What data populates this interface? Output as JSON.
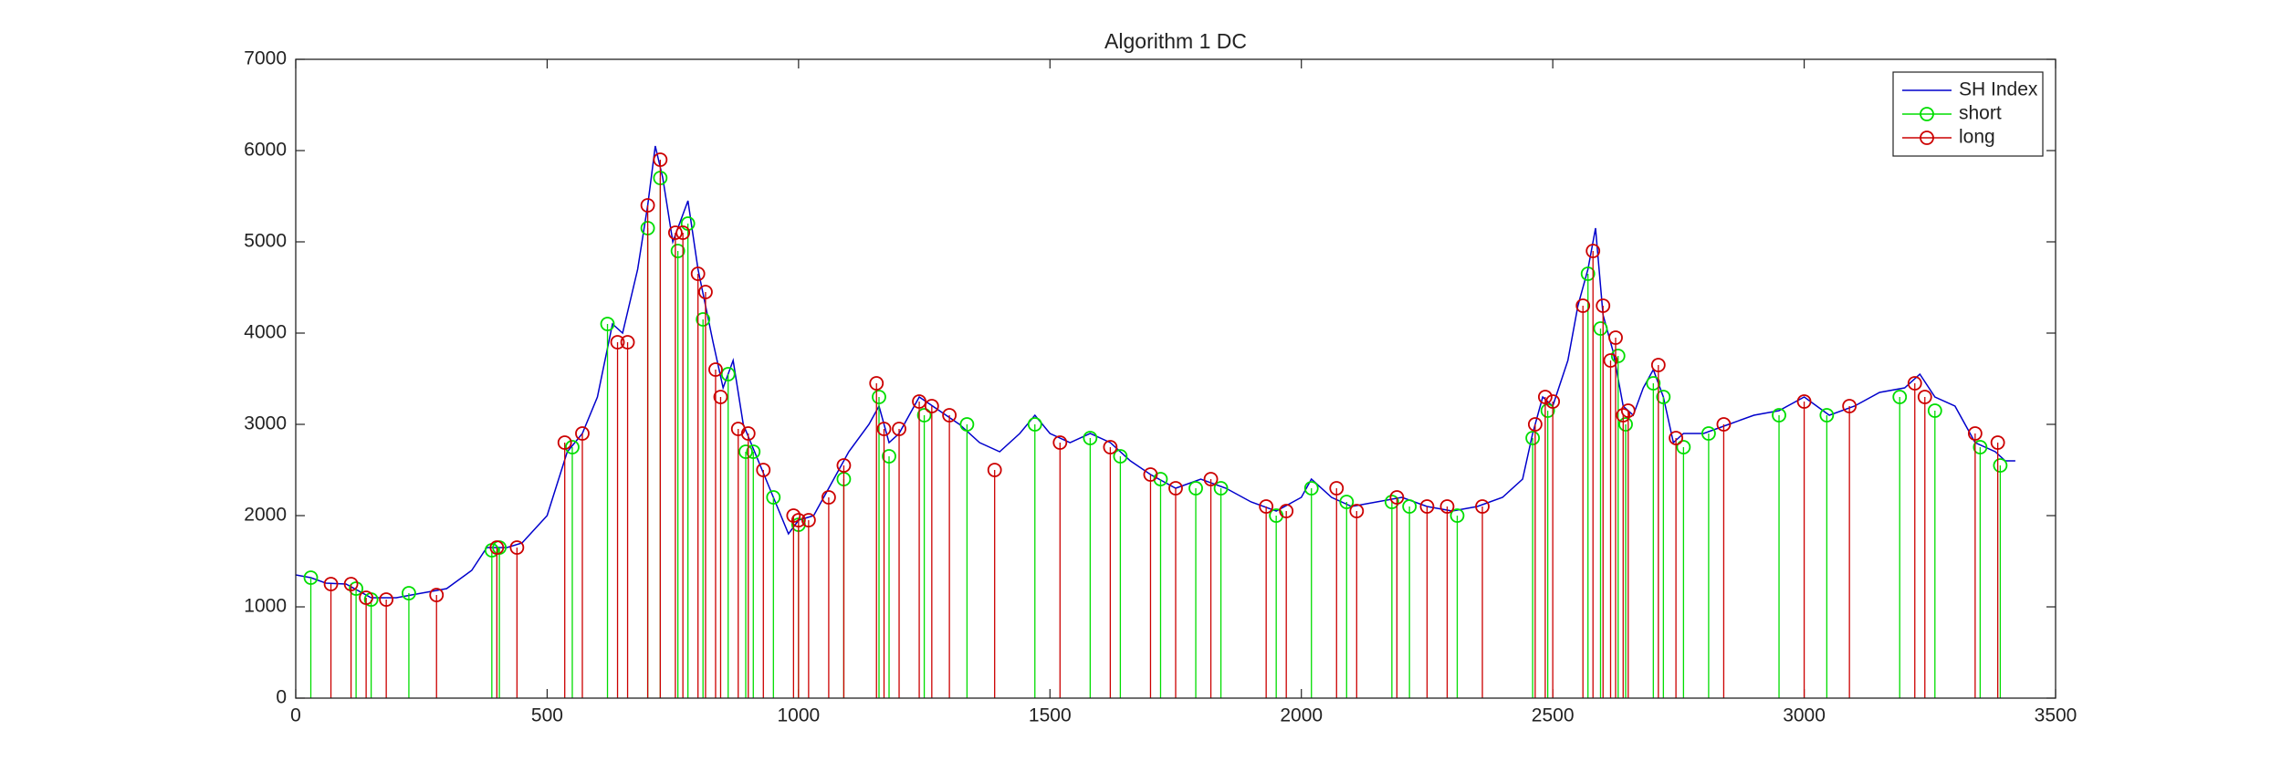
{
  "chart_data": {
    "type": "line",
    "title": "Algorithm 1 DC",
    "xlim": [
      0,
      3500
    ],
    "xticks": [
      0,
      500,
      1000,
      1500,
      2000,
      2500,
      3000,
      3500
    ],
    "ylim": [
      0,
      7000
    ],
    "yticks": [
      0,
      1000,
      2000,
      3000,
      4000,
      5000,
      6000,
      7000
    ],
    "legend": "upper right",
    "series": [
      {
        "name": "SH Index",
        "color": "#0000cc",
        "style": "line",
        "x": [
          0,
          30,
          60,
          100,
          150,
          200,
          250,
          300,
          350,
          380,
          420,
          450,
          500,
          540,
          570,
          600,
          630,
          650,
          680,
          700,
          715,
          730,
          750,
          780,
          800,
          830,
          850,
          870,
          890,
          920,
          950,
          980,
          1000,
          1030,
          1060,
          1100,
          1140,
          1160,
          1180,
          1200,
          1240,
          1280,
          1320,
          1360,
          1400,
          1440,
          1470,
          1500,
          1540,
          1580,
          1620,
          1660,
          1700,
          1750,
          1800,
          1850,
          1900,
          1950,
          2000,
          2020,
          2060,
          2100,
          2150,
          2200,
          2250,
          2300,
          2350,
          2400,
          2440,
          2460,
          2480,
          2500,
          2530,
          2550,
          2570,
          2585,
          2600,
          2620,
          2640,
          2660,
          2680,
          2700,
          2720,
          2740,
          2760,
          2800,
          2850,
          2900,
          2950,
          3000,
          3050,
          3100,
          3150,
          3200,
          3230,
          3260,
          3300,
          3340,
          3380,
          3400,
          3420
        ],
        "values": [
          1350,
          1320,
          1260,
          1250,
          1100,
          1100,
          1150,
          1200,
          1400,
          1650,
          1650,
          1700,
          2000,
          2700,
          2900,
          3300,
          4100,
          4000,
          4700,
          5400,
          6050,
          5700,
          5000,
          5450,
          4700,
          3900,
          3400,
          3700,
          3000,
          2600,
          2200,
          1800,
          1950,
          2000,
          2300,
          2700,
          3000,
          3200,
          2800,
          2900,
          3300,
          3150,
          3000,
          2800,
          2700,
          2900,
          3100,
          2900,
          2800,
          2900,
          2800,
          2600,
          2450,
          2300,
          2400,
          2300,
          2150,
          2050,
          2200,
          2400,
          2200,
          2100,
          2150,
          2200,
          2100,
          2050,
          2100,
          2200,
          2400,
          2900,
          3300,
          3200,
          3700,
          4300,
          4700,
          5150,
          4200,
          3800,
          3200,
          3100,
          3400,
          3600,
          3300,
          2800,
          2900,
          2900,
          3000,
          3100,
          3150,
          3300,
          3100,
          3200,
          3350,
          3400,
          3550,
          3300,
          3200,
          2800,
          2700,
          2600,
          2600
        ]
      },
      {
        "name": "short",
        "color": "#00dd00",
        "style": "stem",
        "x": [
          30,
          120,
          150,
          225,
          390,
          405,
          550,
          620,
          700,
          725,
          760,
          780,
          810,
          860,
          895,
          910,
          950,
          1000,
          1090,
          1160,
          1180,
          1250,
          1335,
          1470,
          1580,
          1640,
          1720,
          1790,
          1840,
          1950,
          2020,
          2090,
          2180,
          2215,
          2310,
          2460,
          2490,
          2570,
          2595,
          2630,
          2645,
          2700,
          2720,
          2760,
          2810,
          2950,
          3045,
          3190,
          3260,
          3350,
          3390
        ],
        "values": [
          1320,
          1200,
          1080,
          1150,
          1620,
          1650,
          2750,
          4100,
          5150,
          5700,
          4900,
          5200,
          4150,
          3550,
          2700,
          2700,
          2200,
          1900,
          2400,
          3300,
          2650,
          3100,
          3000,
          3000,
          2850,
          2650,
          2400,
          2300,
          2300,
          2000,
          2300,
          2150,
          2150,
          2100,
          2000,
          2850,
          3150,
          4650,
          4050,
          3750,
          3000,
          3450,
          3300,
          2750,
          2900,
          3100,
          3100,
          3300,
          3150,
          2750,
          2550
        ]
      },
      {
        "name": "long",
        "color": "#cc0000",
        "style": "stem",
        "x": [
          70,
          110,
          140,
          180,
          280,
          400,
          440,
          535,
          570,
          640,
          660,
          700,
          725,
          755,
          770,
          800,
          815,
          835,
          845,
          880,
          900,
          930,
          990,
          1000,
          1020,
          1060,
          1090,
          1155,
          1170,
          1200,
          1240,
          1265,
          1300,
          1390,
          1520,
          1620,
          1700,
          1750,
          1820,
          1930,
          1970,
          2070,
          2110,
          2190,
          2250,
          2290,
          2360,
          2465,
          2485,
          2500,
          2560,
          2580,
          2600,
          2615,
          2625,
          2640,
          2650,
          2710,
          2745,
          2840,
          3000,
          3090,
          3220,
          3240,
          3340,
          3385
        ],
        "values": [
          1250,
          1250,
          1100,
          1080,
          1130,
          1650,
          1650,
          2800,
          2900,
          3900,
          3900,
          5400,
          5900,
          5100,
          5100,
          4650,
          4450,
          3600,
          3300,
          2950,
          2900,
          2500,
          2000,
          1950,
          1950,
          2200,
          2550,
          3450,
          2950,
          2950,
          3250,
          3200,
          3100,
          2500,
          2800,
          2750,
          2450,
          2300,
          2400,
          2100,
          2050,
          2300,
          2050,
          2200,
          2100,
          2100,
          2100,
          3000,
          3300,
          3250,
          4300,
          4900,
          4300,
          3700,
          3950,
          3100,
          3150,
          3650,
          2850,
          3000,
          3250,
          3200,
          3450,
          3300,
          2900,
          2800
        ]
      }
    ]
  }
}
